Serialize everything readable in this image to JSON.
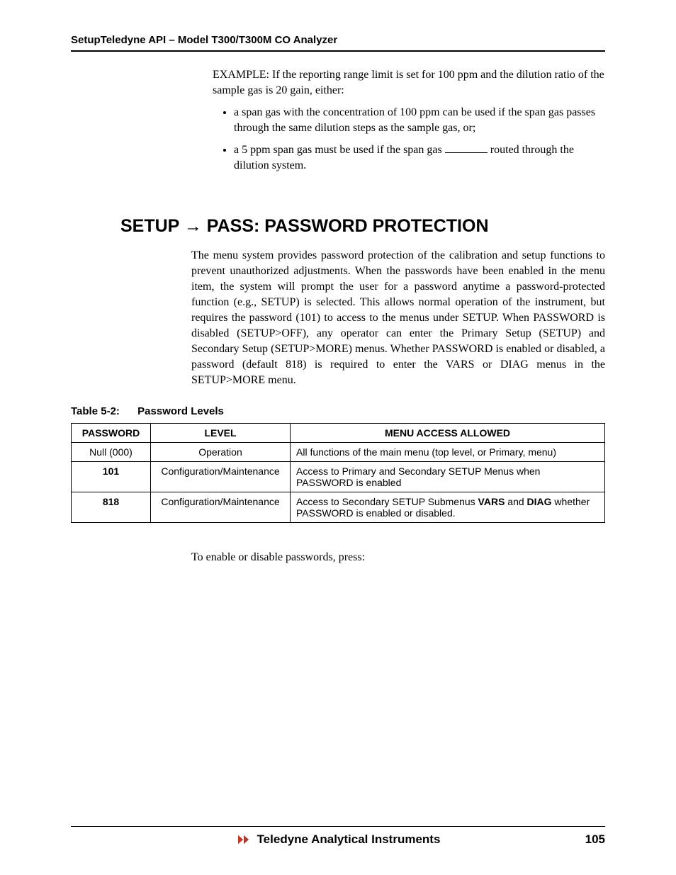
{
  "header": {
    "text": "SetupTeledyne API – Model T300/T300M CO Analyzer"
  },
  "intro": {
    "example": "EXAMPLE:  If the reporting range limit  is set for 100 ppm and the dilution ratio of the sample gas is 20 gain, either:",
    "bullet1": "a span gas with the concentration of 100 ppm can be used if the span gas passes through the same dilution steps as the sample gas, or;",
    "bullet2_a": " a 5 ppm span gas must be used if the span gas ",
    "bullet2_b": " routed through the dilution system."
  },
  "section": {
    "title": "SETUP → PASS: PASSWORD PROTECTION",
    "para": "The menu system provides password protection of the calibration and setup functions to prevent unauthorized adjustments.  When the passwords have been enabled in the menu item, the system will prompt the user for a password anytime a password-protected function (e.g., SETUP) is selected. This allows normal operation of the instrument, but requires the password (101) to access to the menus under SETUP. When PASSWORD is disabled (SETUP>OFF), any operator can enter the Primary Setup (SETUP) and Secondary Setup (SETUP>MORE) menus. Whether PASSWORD is enabled or disabled, a password (default 818) is required to enter the VARS or DIAG menus in the SETUP>MORE menu."
  },
  "table": {
    "caption_num": "Table 5-2:",
    "caption_title": "Password Levels",
    "headers": {
      "c1": "PASSWORD",
      "c2": "LEVEL",
      "c3": "MENU ACCESS ALLOWED"
    },
    "rows": [
      {
        "pw": "Null (000)",
        "pw_bold": false,
        "level": "Operation",
        "access_pre": "All functions of the main menu (top level, or Primary,  menu)",
        "b1": "",
        "mid1": "",
        "b2": "",
        "post": ""
      },
      {
        "pw": "101",
        "pw_bold": true,
        "level": "Configuration/Maintenance",
        "access_pre": "Access to Primary and Secondary SETUP Menus when PASSWORD is enabled",
        "b1": "",
        "mid1": "",
        "b2": "",
        "post": ""
      },
      {
        "pw": "818",
        "pw_bold": true,
        "level": "Configuration/Maintenance",
        "access_pre": "Access to Secondary SETUP Submenus ",
        "b1": "VARS",
        "mid1": " and ",
        "b2": "DIAG",
        "post": " whether PASSWORD is enabled or disabled."
      }
    ]
  },
  "after_table": "To enable or disable passwords, press:",
  "footer": {
    "brand": "Teledyne Analytical Instruments",
    "page": "105",
    "logo_colors": {
      "fill": "#c0392b",
      "shadow": "#555555"
    }
  }
}
